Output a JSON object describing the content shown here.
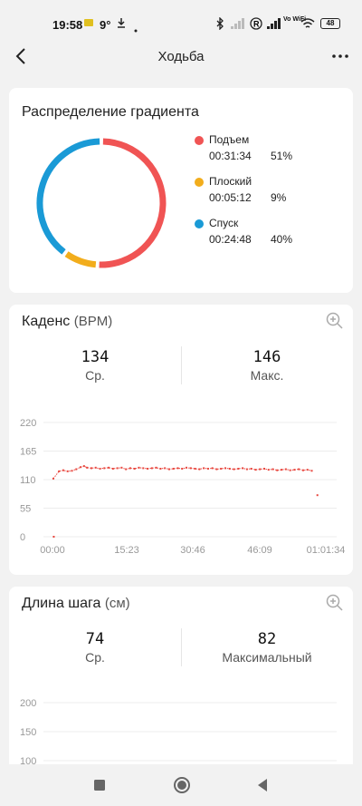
{
  "status_bar": {
    "time": "19:58",
    "temperature": "9°",
    "network_label": "Vo WiFi",
    "battery": "48"
  },
  "header": {
    "title": "Ходьба"
  },
  "gradient_card": {
    "title": "Распределение градиента",
    "items": [
      {
        "name": "Подъем",
        "time": "00:31:34",
        "percent": "51%",
        "color": "#f05454",
        "value": 51
      },
      {
        "name": "Плоский",
        "time": "00:05:12",
        "percent": "9%",
        "color": "#f2ad1c",
        "value": 9
      },
      {
        "name": "Спуск",
        "time": "00:24:48",
        "percent": "40%",
        "color": "#1a9ad6",
        "value": 40
      }
    ]
  },
  "cadence_card": {
    "title": "Каденс",
    "unit": "(BPM)",
    "avg_value": "134",
    "avg_label": "Ср.",
    "max_value": "146",
    "max_label": "Макс."
  },
  "stride_card": {
    "title": "Длина шага",
    "unit": "(см)",
    "avg_value": "74",
    "avg_label": "Ср.",
    "max_value": "82",
    "max_label": "Максимальный"
  },
  "chart_data": [
    {
      "type": "scatter",
      "ylim": [
        0,
        220
      ],
      "y_ticks": [
        "220",
        "165",
        "110",
        "55",
        "0"
      ],
      "x_ticks": [
        "00:00",
        "15:23",
        "30:46",
        "46:09",
        "01:01:34"
      ],
      "xlim_min": [
        0,
        61.57
      ],
      "color": "#e8473f",
      "points": [
        [
          0.3,
          0
        ],
        [
          0.2,
          112
        ],
        [
          1.5,
          126
        ],
        [
          2.5,
          128
        ],
        [
          3.5,
          126
        ],
        [
          4.5,
          127
        ],
        [
          5.5,
          130
        ],
        [
          6.5,
          134
        ],
        [
          7.3,
          136
        ],
        [
          8,
          133
        ],
        [
          9,
          132
        ],
        [
          10,
          133
        ],
        [
          11,
          131
        ],
        [
          12,
          132
        ],
        [
          13,
          133
        ],
        [
          14,
          131
        ],
        [
          15,
          132
        ],
        [
          16,
          133
        ],
        [
          17,
          130
        ],
        [
          18,
          132
        ],
        [
          19,
          131
        ],
        [
          20,
          133
        ],
        [
          21,
          132
        ],
        [
          22,
          131
        ],
        [
          23,
          132
        ],
        [
          24,
          133
        ],
        [
          25,
          131
        ],
        [
          26,
          132
        ],
        [
          27,
          130
        ],
        [
          28,
          131
        ],
        [
          29,
          132
        ],
        [
          30,
          131
        ],
        [
          31,
          133
        ],
        [
          32,
          132
        ],
        [
          33,
          131
        ],
        [
          34,
          130
        ],
        [
          35,
          132
        ],
        [
          36,
          131
        ],
        [
          37,
          132
        ],
        [
          38,
          130
        ],
        [
          39,
          131
        ],
        [
          40,
          132
        ],
        [
          41,
          131
        ],
        [
          42,
          130
        ],
        [
          43,
          131
        ],
        [
          44,
          132
        ],
        [
          45,
          130
        ],
        [
          46,
          131
        ],
        [
          47,
          129
        ],
        [
          48,
          130
        ],
        [
          49,
          131
        ],
        [
          50,
          129
        ],
        [
          51,
          130
        ],
        [
          52,
          128
        ],
        [
          53,
          129
        ],
        [
          54,
          130
        ],
        [
          55,
          128
        ],
        [
          56,
          129
        ],
        [
          57,
          130
        ],
        [
          58,
          128
        ],
        [
          59,
          129
        ],
        [
          60,
          127
        ],
        [
          61.3,
          80
        ]
      ]
    },
    {
      "type": "scatter",
      "y_ticks": [
        "200",
        "150",
        "100"
      ],
      "ylim_visible": [
        100,
        200
      ],
      "color": "#e8473f",
      "points": []
    }
  ]
}
